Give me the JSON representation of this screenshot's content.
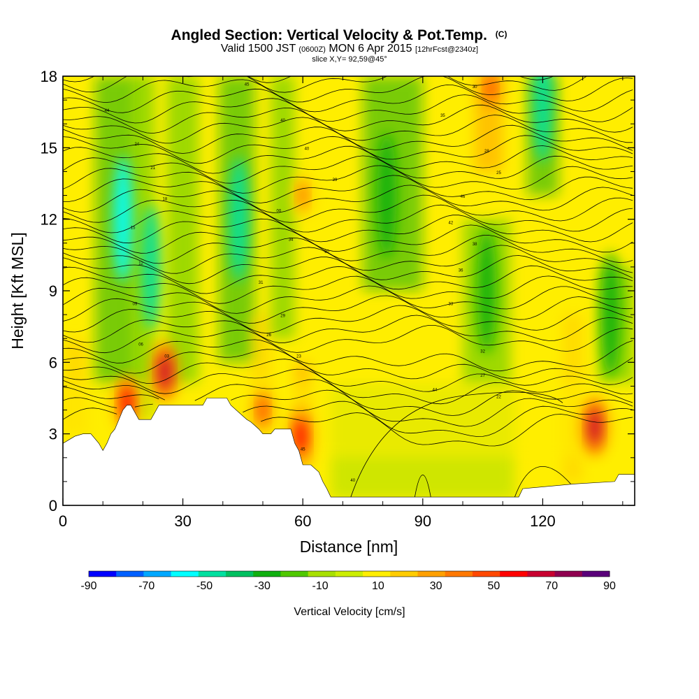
{
  "title": {
    "main": "Angled Section: Vertical Velocity & Pot.Temp.",
    "main_unit": "(C)",
    "valid_prefix": "Valid 1500 JST",
    "valid_zulu": "(0600Z)",
    "valid_date": "MON 6 Apr 2015",
    "forecast": "[12hrFcst@2340z]",
    "slice": "slice X,Y= 92,59@45°"
  },
  "chart_data": {
    "type": "heatmap",
    "xlabel": "Distance [nm]",
    "ylabel": "Height [Kft MSL]",
    "xlim": [
      0,
      143
    ],
    "ylim": [
      0,
      18
    ],
    "x_ticks": [
      "0",
      "30",
      "60",
      "90",
      "120"
    ],
    "y_ticks": [
      "0",
      "3",
      "6",
      "9",
      "12",
      "15",
      "18"
    ],
    "colorbar": {
      "title": "Vertical Velocity [cm/s]",
      "tick_labels": [
        "-90",
        "-70",
        "-50",
        "-30",
        "-10",
        "10",
        "30",
        "50",
        "70",
        "90"
      ],
      "bins": [
        -90,
        -80,
        -70,
        -60,
        -50,
        -40,
        -30,
        -20,
        -10,
        0,
        10,
        20,
        30,
        40,
        50,
        60,
        70,
        80,
        90
      ],
      "colors": [
        "#0000ff",
        "#0060ff",
        "#00a8ff",
        "#00ffff",
        "#00e0a0",
        "#00c060",
        "#10b010",
        "#50c800",
        "#a8e000",
        "#ccee00",
        "#ffee00",
        "#ffcc00",
        "#ffa000",
        "#ff7800",
        "#ff4800",
        "#ff0000",
        "#c80030",
        "#900050",
        "#5a007a"
      ]
    },
    "terrain_kft": [
      [
        0,
        2.6
      ],
      [
        3,
        2.9
      ],
      [
        5,
        3.0
      ],
      [
        7,
        3.0
      ],
      [
        9,
        2.6
      ],
      [
        10,
        2.3
      ],
      [
        11,
        2.6
      ],
      [
        12,
        3.0
      ],
      [
        13,
        3.2
      ],
      [
        14,
        3.6
      ],
      [
        15,
        4.0
      ],
      [
        16,
        4.2
      ],
      [
        17,
        4.2
      ],
      [
        18,
        3.9
      ],
      [
        19,
        3.6
      ],
      [
        22,
        3.6
      ],
      [
        23,
        3.9
      ],
      [
        24,
        4.2
      ],
      [
        35,
        4.2
      ],
      [
        36,
        4.5
      ],
      [
        41,
        4.5
      ],
      [
        42,
        4.2
      ],
      [
        44,
        3.9
      ],
      [
        46,
        3.6
      ],
      [
        47,
        3.5
      ],
      [
        49,
        3.2
      ],
      [
        50,
        3.0
      ],
      [
        52,
        3.0
      ],
      [
        53,
        3.2
      ],
      [
        57,
        3.2
      ],
      [
        58,
        2.6
      ],
      [
        59,
        2.3
      ],
      [
        60,
        1.7
      ],
      [
        62,
        1.7
      ],
      [
        64,
        1.4
      ],
      [
        65,
        1.0
      ],
      [
        66,
        0.7
      ],
      [
        67,
        0.35
      ],
      [
        114,
        0.35
      ],
      [
        115,
        0.7
      ],
      [
        128,
        0.9
      ],
      [
        138,
        1.0
      ],
      [
        139,
        1.3
      ],
      [
        143,
        1.3
      ]
    ],
    "updraft_cores": [
      {
        "x": 16,
        "z": 4.3,
        "w": 60
      },
      {
        "x": 25.5,
        "z": 5.6,
        "w": 70
      },
      {
        "x": 50,
        "z": 4.0,
        "w": 50
      },
      {
        "x": 59.5,
        "z": 2.9,
        "w": 60
      },
      {
        "x": 60,
        "z": 13,
        "w": 40
      },
      {
        "x": 107,
        "z": 17.5,
        "w": 50
      },
      {
        "x": 133,
        "z": 3.3,
        "w": 70
      }
    ],
    "downdraft_cores": [
      {
        "x": 15,
        "z": 12,
        "w": -55
      },
      {
        "x": 22,
        "z": 10,
        "w": -45
      },
      {
        "x": 44,
        "z": 12,
        "w": -50
      },
      {
        "x": 81,
        "z": 13,
        "w": -30
      },
      {
        "x": 106,
        "z": 9,
        "w": -25
      },
      {
        "x": 120,
        "z": 17,
        "w": -45
      },
      {
        "x": 137,
        "z": 8,
        "w": -30
      }
    ],
    "contour_label_values": [
      "44",
      "45",
      "40",
      "40",
      "39",
      "35",
      "30",
      "28",
      "25",
      "24",
      "21",
      "18",
      "15",
      "12",
      "09",
      "06",
      "03",
      "00",
      "34",
      "31",
      "29",
      "26",
      "23",
      "20",
      "46",
      "42",
      "38",
      "36",
      "33",
      "32",
      "27",
      "22"
    ]
  }
}
